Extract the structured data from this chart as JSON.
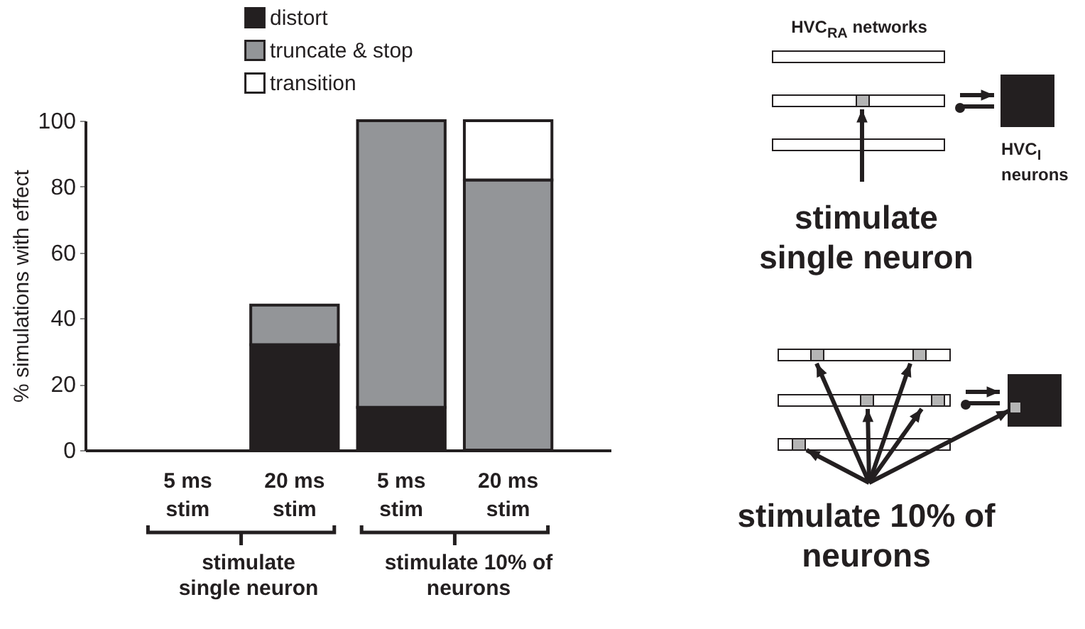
{
  "chart_data": {
    "type": "bar",
    "stacked": true,
    "ylabel": "% simulations with effect",
    "categories": [
      "5 ms\nstim",
      "20 ms\nstim",
      "5 ms\nstim",
      "20 ms\nstim"
    ],
    "series": [
      {
        "name": "distort",
        "color": "#231f20",
        "values": [
          0,
          32,
          13,
          0
        ]
      },
      {
        "name": "truncate & stop",
        "color": "#939598",
        "values": [
          0,
          12,
          87,
          82
        ]
      },
      {
        "name": "transition",
        "color": "#ffffff",
        "values": [
          0,
          0,
          0,
          18
        ]
      }
    ],
    "ylim": [
      0,
      100
    ],
    "yticks": [
      0,
      20,
      40,
      60,
      80,
      100
    ],
    "grid": false,
    "legend": "top",
    "annotations": [
      "stimulate single neuron",
      "stimulate 10% of neurons",
      "HVC$_{RA}$ networks",
      "HVC$_{I}$ neurons",
      "stimulate single neuron",
      "stimulate 10% of neurons"
    ]
  }
}
